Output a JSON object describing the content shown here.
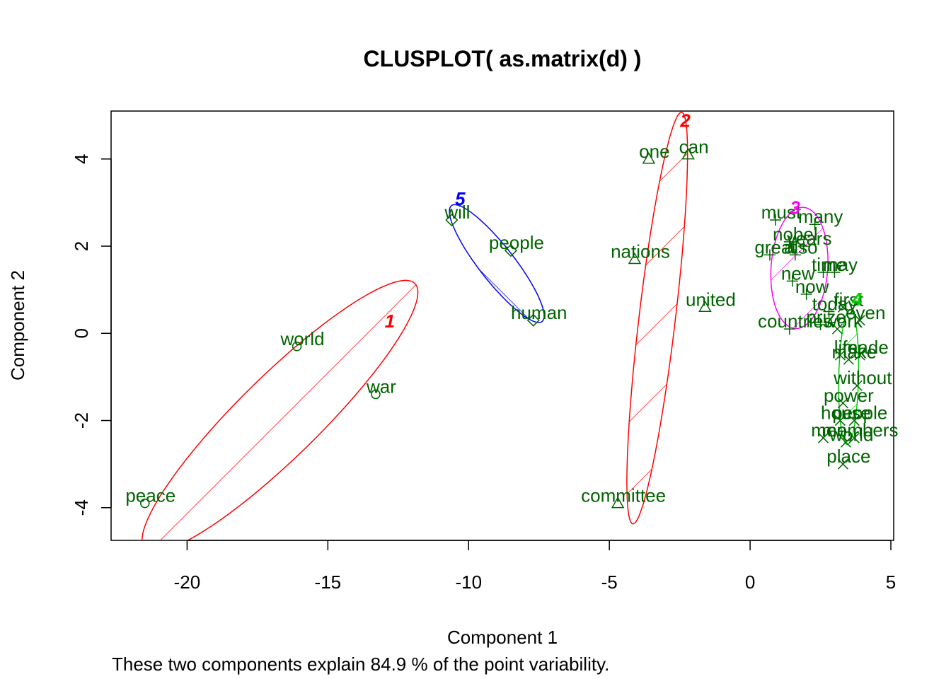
{
  "chart_data": {
    "type": "scatter",
    "title": "CLUSPLOT( as.matrix(d) )",
    "xlabel": "Component 1",
    "ylabel": "Component 2",
    "caption": "These two components explain 84.9 % of the point variability.",
    "xlim": [
      -22.7,
      5.1
    ],
    "ylim": [
      -4.75,
      5.1
    ],
    "xticks": [
      -20,
      -15,
      -10,
      -5,
      0,
      5
    ],
    "yticks": [
      -4,
      -2,
      0,
      2,
      4
    ],
    "grid": false,
    "point_color": "#006400",
    "clusters": [
      {
        "id": "1",
        "color": "#FF0000",
        "hatch_angle": 45,
        "label_pos": [
          -12.8,
          0.3
        ],
        "ellipse": {
          "cx": -16.7,
          "cy": -1.9,
          "a": 5.7,
          "b": 1.1,
          "angle_deg": 31.4
        },
        "points": [
          {
            "label": "world",
            "x": -16.1,
            "y": -0.3,
            "marker": "circle"
          },
          {
            "label": "war",
            "x": -13.3,
            "y": -1.4,
            "marker": "circle"
          },
          {
            "label": "peace",
            "x": -21.5,
            "y": -3.9,
            "marker": "circle"
          }
        ]
      },
      {
        "id": "2",
        "color": "#FF0000",
        "hatch_angle": 45,
        "label_pos": [
          -2.3,
          4.9
        ],
        "ellipse": {
          "cx": -3.3,
          "cy": 0.35,
          "a": 4.8,
          "b": 0.64,
          "angle_deg": 79.5
        },
        "points": [
          {
            "label": "one",
            "x": -3.6,
            "y": 4.0,
            "marker": "triangle"
          },
          {
            "label": "can",
            "x": -2.2,
            "y": 4.1,
            "marker": "triangle"
          },
          {
            "label": "nations",
            "x": -4.1,
            "y": 1.7,
            "marker": "triangle"
          },
          {
            "label": "united",
            "x": -1.6,
            "y": 0.6,
            "marker": "triangle"
          },
          {
            "label": "committee",
            "x": -4.7,
            "y": -3.9,
            "marker": "triangle"
          }
        ]
      },
      {
        "id": "3",
        "color": "#FF00FF",
        "hatch_angle": 45,
        "label_pos": [
          1.6,
          2.9
        ],
        "ellipse": {
          "cx": 1.75,
          "cy": 1.5,
          "a": 1.4,
          "b": 1.0,
          "angle_deg": 80
        },
        "points": [
          {
            "label": "must",
            "x": 0.9,
            "y": 2.6,
            "marker": "plus"
          },
          {
            "label": "many",
            "x": 2.3,
            "y": 2.5,
            "marker": "plus"
          },
          {
            "label": "nobel",
            "x": 1.4,
            "y": 2.1,
            "marker": "plus"
          },
          {
            "label": "years",
            "x": 1.9,
            "y": 2.0,
            "marker": "plus"
          },
          {
            "label": "great",
            "x": 0.7,
            "y": 1.8,
            "marker": "plus"
          },
          {
            "label": "also",
            "x": 1.6,
            "y": 1.8,
            "marker": "plus"
          },
          {
            "label": "time",
            "x": 2.6,
            "y": 1.4,
            "marker": "plus"
          },
          {
            "label": "may",
            "x": 3.0,
            "y": 1.4,
            "marker": "plus"
          },
          {
            "label": "new",
            "x": 1.5,
            "y": 1.2,
            "marker": "plus"
          },
          {
            "label": "now",
            "x": 2.0,
            "y": 0.9,
            "marker": "plus"
          },
          {
            "label": "today",
            "x": 2.8,
            "y": 0.5,
            "marker": "plus"
          },
          {
            "label": "prize",
            "x": 2.5,
            "y": 0.2,
            "marker": "plus"
          },
          {
            "label": "countries",
            "x": 1.4,
            "y": 0.1,
            "marker": "plus"
          }
        ]
      },
      {
        "id": "4",
        "color": "#00CD00",
        "hatch_angle": 45,
        "label_pos": [
          3.8,
          0.8
        ],
        "ellipse": {
          "cx": 3.5,
          "cy": -1.0,
          "a": 1.55,
          "b": 0.35,
          "angle_deg": 88
        },
        "points": [
          {
            "label": "first",
            "x": 3.3,
            "y": 0.6,
            "marker": "cross"
          },
          {
            "label": "even",
            "x": 3.9,
            "y": 0.3,
            "marker": "cross"
          },
          {
            "label": "work",
            "x": 3.1,
            "y": 0.1,
            "marker": "cross"
          },
          {
            "label": "life",
            "x": 3.2,
            "y": -0.5,
            "marker": "cross"
          },
          {
            "label": "made",
            "x": 3.9,
            "y": -0.5,
            "marker": "cross"
          },
          {
            "label": "make",
            "x": 3.5,
            "y": -0.6,
            "marker": "cross"
          },
          {
            "label": "without",
            "x": 3.8,
            "y": -1.2,
            "marker": "cross"
          },
          {
            "label": "power",
            "x": 3.3,
            "y": -1.6,
            "marker": "cross"
          },
          {
            "label": "house",
            "x": 3.2,
            "y": -2.0,
            "marker": "cross"
          },
          {
            "label": "people",
            "x": 3.7,
            "y": -2.0,
            "marker": "cross"
          },
          {
            "label": "members",
            "x": 3.7,
            "y": -2.4,
            "marker": "cross"
          },
          {
            "label": "men",
            "x": 2.6,
            "y": -2.4,
            "marker": "cross"
          },
          {
            "label": "world",
            "x": 3.4,
            "y": -2.5,
            "marker": "cross"
          },
          {
            "label": "place",
            "x": 3.3,
            "y": -3.0,
            "marker": "cross"
          }
        ]
      },
      {
        "id": "5",
        "color": "#0000FF",
        "hatch_angle": 135,
        "label_pos": [
          -10.3,
          3.1
        ],
        "ellipse": {
          "cx": -9.0,
          "cy": 1.6,
          "a": 2.1,
          "b": 0.5,
          "angle_deg": -38
        },
        "points": [
          {
            "label": "will",
            "x": -10.6,
            "y": 2.6,
            "marker": "diamond"
          },
          {
            "label": "people",
            "x": -8.5,
            "y": 1.9,
            "marker": "diamond"
          },
          {
            "label": "human",
            "x": -7.7,
            "y": 0.3,
            "marker": "diamond"
          }
        ]
      }
    ]
  }
}
